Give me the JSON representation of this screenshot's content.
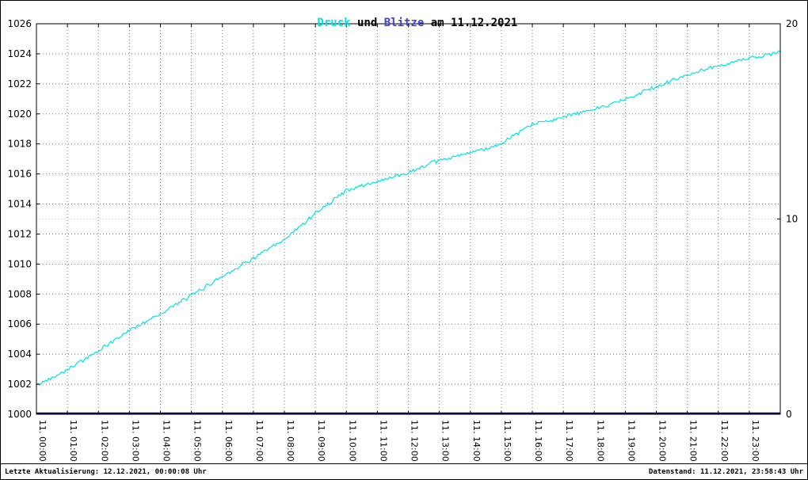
{
  "footer": {
    "left": "Letzte Aktualisierung: 12.12.2021, 00:00:08 Uhr",
    "right": "Datenstand: 11.12.2021, 23:58:43 Uhr"
  },
  "chart_data": {
    "type": "line",
    "title": "Druck und Blitze am 11.12.2021",
    "title_parts": [
      {
        "text": "Druck",
        "color": "#00e5e5"
      },
      {
        "text": " und ",
        "color": "#000000"
      },
      {
        "text": "Blitze",
        "color": "#4444cc"
      },
      {
        "text": " am 11.12.2021",
        "color": "#000000"
      }
    ],
    "x_labels": [
      "11. 00:00",
      "11. 01:00",
      "11. 02:00",
      "11. 03:00",
      "11. 04:00",
      "11. 05:00",
      "11. 06:00",
      "11. 07:00",
      "11. 08:00",
      "11. 09:00",
      "11. 10:00",
      "11. 11:00",
      "11. 12:00",
      "11. 13:00",
      "11. 14:00",
      "11. 15:00",
      "11. 16:00",
      "11. 17:00",
      "11. 18:00",
      "11. 19:00",
      "11. 20:00",
      "11. 21:00",
      "11. 22:00",
      "11. 23:00"
    ],
    "left_axis": {
      "label": "",
      "min": 1000,
      "max": 1026,
      "step": 2,
      "ticks": [
        1000,
        1002,
        1004,
        1006,
        1008,
        1010,
        1012,
        1014,
        1016,
        1018,
        1020,
        1022,
        1024,
        1026
      ]
    },
    "right_axis": {
      "label": "",
      "min": 0,
      "max": 20,
      "ticks": [
        0,
        10,
        20
      ]
    },
    "reference_line": {
      "axis": "left",
      "value": 1013
    },
    "grid": true,
    "legend_position": "none",
    "series": [
      {
        "name": "Druck",
        "axis": "left",
        "color": "#00e5e5",
        "x_hours": [
          0,
          1,
          2,
          3,
          4,
          5,
          6,
          7,
          8,
          9,
          10,
          11,
          12,
          13,
          14,
          15,
          16,
          17,
          18,
          19,
          20,
          21,
          22,
          23,
          24
        ],
        "values": [
          1001.9,
          1003.0,
          1004.2,
          1005.6,
          1006.7,
          1007.9,
          1009.2,
          1010.4,
          1011.6,
          1013.4,
          1014.9,
          1015.5,
          1016.1,
          1016.9,
          1017.4,
          1018.0,
          1019.3,
          1019.8,
          1020.3,
          1021.0,
          1021.8,
          1022.6,
          1023.2,
          1023.7,
          1024.1
        ]
      },
      {
        "name": "Blitze",
        "axis": "right",
        "color": "#000066",
        "x_hours": [
          0,
          24
        ],
        "values": [
          0,
          0
        ]
      }
    ]
  }
}
